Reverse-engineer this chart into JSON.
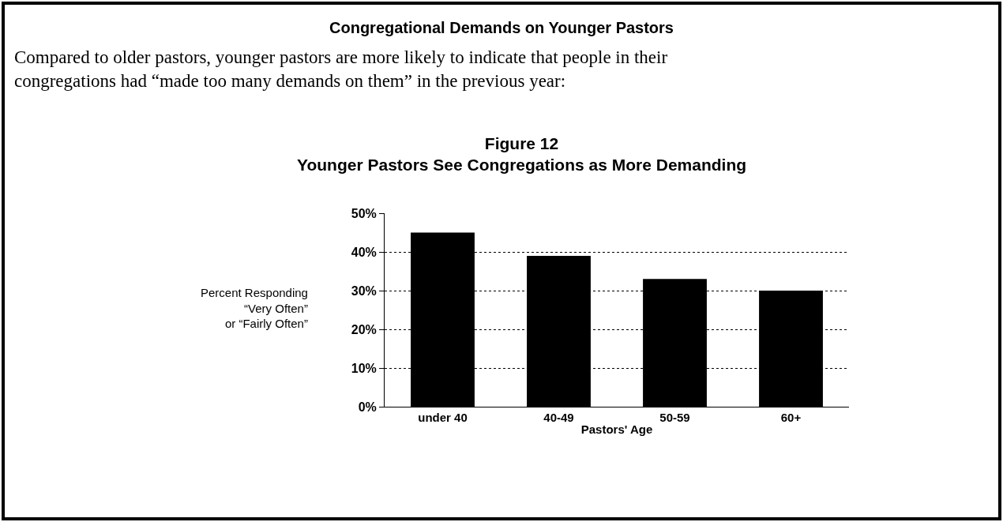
{
  "chart_data": {
    "type": "bar",
    "title": "Congregational Demands on Younger Pastors",
    "subtitle": "Compared to older pastors, younger pastors are more likely to indicate that people in their congregations had “made too many demands on them” in the previous year:",
    "annotations": [
      "Figure 12\nYounger Pastors See Congregations as More Demanding"
    ],
    "xlabel": "Pastors' Age",
    "ylabel": "Percent Responding\n“Very Often”\nor “Fairly Often”",
    "categories": [
      "under 40",
      "40-49",
      "50-59",
      "60+"
    ],
    "values": [
      45,
      39,
      33,
      30
    ],
    "color": "#000000",
    "ylim": [
      0,
      50
    ],
    "yticks": [
      {
        "value": 0,
        "label": "0%"
      },
      {
        "value": 10,
        "label": "10%"
      },
      {
        "value": 20,
        "label": "20%"
      },
      {
        "value": 30,
        "label": "30%"
      },
      {
        "value": 40,
        "label": "40%"
      },
      {
        "value": 50,
        "label": "50%"
      }
    ],
    "grid": "y"
  }
}
